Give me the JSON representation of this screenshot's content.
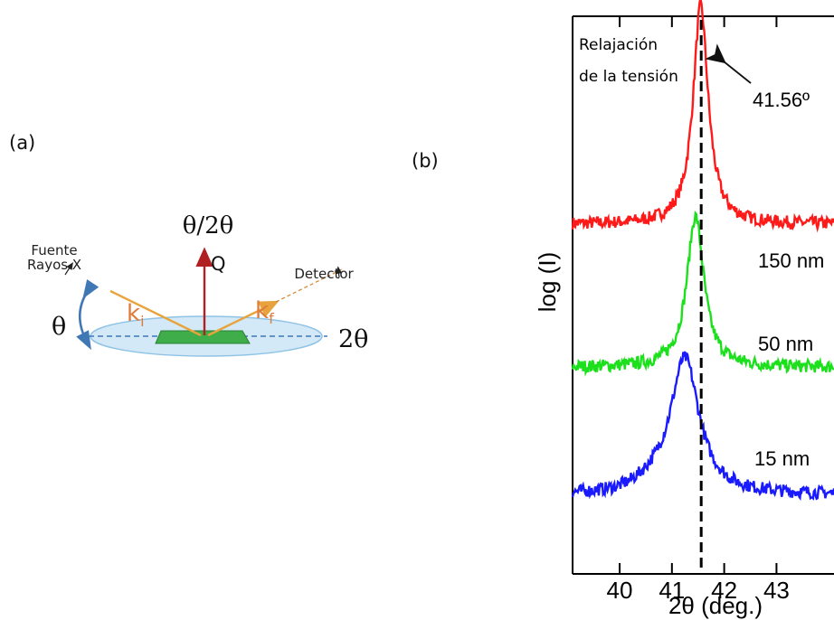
{
  "panel_a": {
    "label": "(a)",
    "scan_label": "θ/2θ",
    "q_label": "Q",
    "source_label_line1": "Fuente",
    "source_label_line2": "Rayos-X",
    "detector_label": "Detector",
    "theta_label": "θ",
    "two_theta_label": "2θ",
    "ki_label": "k",
    "ki_sub": "i",
    "kf_label": "k",
    "kf_sub": "f",
    "colors": {
      "incident": "#e8a33c",
      "q_vector": "#b02020",
      "ellipse": "#cfe6f5",
      "sample": "#3fae4a",
      "theta_arrow": "#3f78b5"
    }
  },
  "panel_b": {
    "label": "(b)",
    "chart_data": {
      "type": "line",
      "xlabel": "2θ (deg.)",
      "ylabel": "log (I)",
      "xlim": [
        39.1,
        44.1
      ],
      "x_ticks": [
        40,
        41,
        42,
        43
      ],
      "x_tick_labels": [
        "40",
        "41",
        "42",
        "43"
      ],
      "reference_line": {
        "x": 41.56,
        "label": "41.56º",
        "style": "dashed"
      },
      "annotation": {
        "line1": "Relajación",
        "line2": "de la tensión"
      },
      "series": [
        {
          "name": "150 nm",
          "color": "#ff1a1a",
          "baseline": 0.72,
          "peak_x": 41.55,
          "peak_height": 0.55,
          "width": 0.22
        },
        {
          "name": "50 nm",
          "color": "#1de01d",
          "baseline": 0.36,
          "peak_x": 41.45,
          "peak_height": 0.38,
          "width": 0.25
        },
        {
          "name": "15 nm",
          "color": "#1a1aff",
          "baseline": 0.04,
          "peak_x": 41.25,
          "peak_height": 0.34,
          "width": 0.42
        }
      ]
    }
  }
}
